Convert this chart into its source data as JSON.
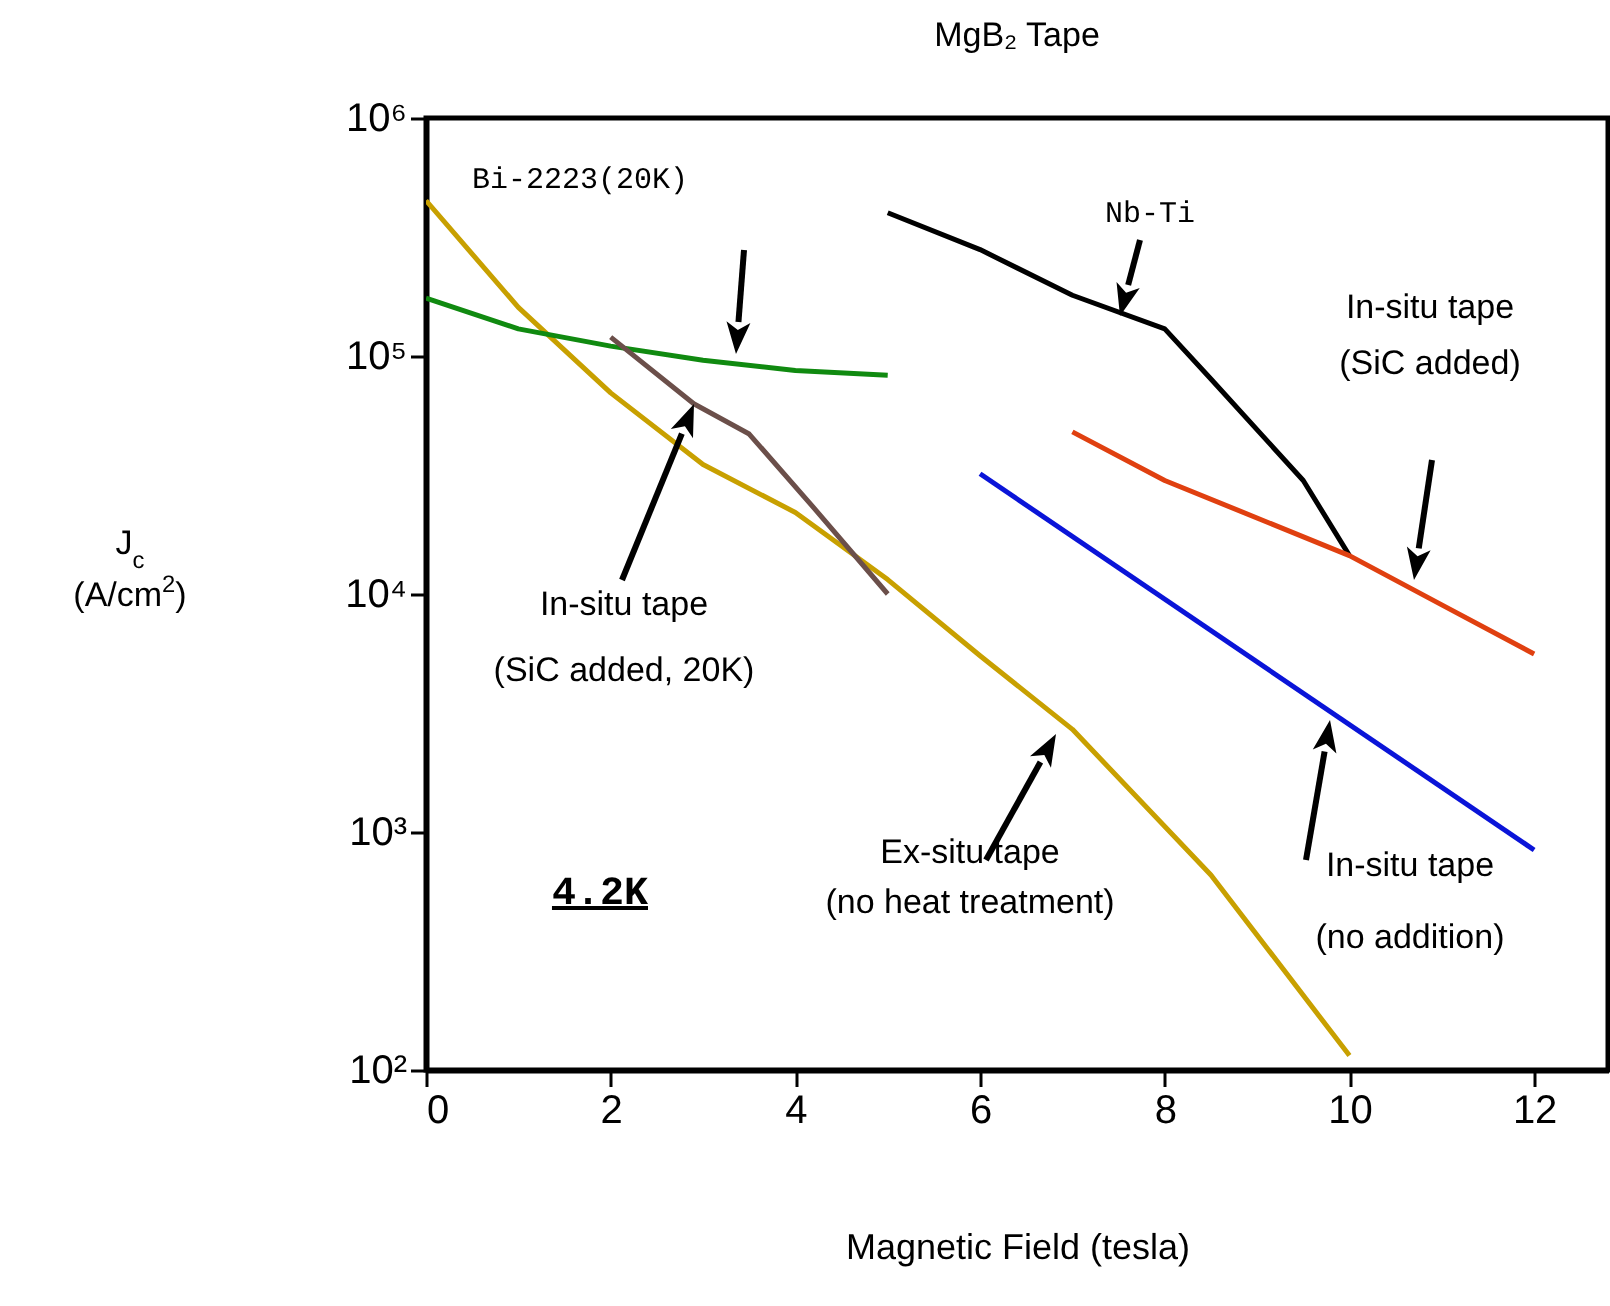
{
  "chart_data": {
    "type": "line",
    "title": "MgB₂ Tape",
    "xlabel": "Magnetic Field (tesla)",
    "ylabel": "J$_{c}$\n(A/cm$^{2}$)",
    "log": "y",
    "xlim": [
      0,
      12.8
    ],
    "xticks": [
      0,
      2,
      4,
      6,
      8,
      10,
      12
    ],
    "ylim": [
      100,
      1000000
    ],
    "yticks": [
      {
        "value": 100,
        "label": "10²"
      },
      {
        "value": 1000,
        "label": "10³"
      },
      {
        "value": 10000,
        "label": "10⁴"
      },
      {
        "value": 100000,
        "label": "10⁵"
      },
      {
        "value": 1000000,
        "label": "10⁶"
      }
    ],
    "series": [
      {
        "color": "#c8a000",
        "x": [
          0,
          1,
          2,
          3,
          4,
          5,
          6,
          7,
          8.5,
          10
        ],
        "values": [
          450000,
          160000,
          70000,
          35000,
          22000,
          11500,
          5500,
          2700,
          660,
          115
        ]
      },
      {
        "color": "#108a10",
        "x": [
          0,
          1,
          2,
          3,
          4,
          5
        ],
        "values": [
          175000,
          130000,
          110000,
          96000,
          87000,
          83000
        ]
      },
      {
        "color": "#6b4f4a",
        "x": [
          2,
          2.9,
          3.5,
          4.2,
          5
        ],
        "values": [
          120000,
          63000,
          47000,
          23000,
          10000
        ]
      },
      {
        "color": "#000000",
        "x": [
          5,
          6,
          7,
          8,
          8.5,
          9.5,
          10
        ],
        "values": [
          400000,
          280000,
          180000,
          130000,
          80000,
          30000,
          14500
        ]
      },
      {
        "color": "#e04010",
        "x": [
          7,
          8,
          10,
          11,
          12
        ],
        "values": [
          48000,
          30000,
          14500,
          9000,
          5600
        ]
      },
      {
        "color": "#0a14d8",
        "x": [
          6,
          12
        ],
        "values": [
          32000,
          840
        ]
      }
    ],
    "annotations": [
      "Bi-2223(20K)",
      "Nb-Ti",
      "In-situ tape\n(SiC added)",
      "In-situ tape\n(SiC added, 20K)",
      "Ex-situ tape\n (no heat treatment)",
      "In-situ tape\n(no addition)",
      "4.2K"
    ]
  }
}
